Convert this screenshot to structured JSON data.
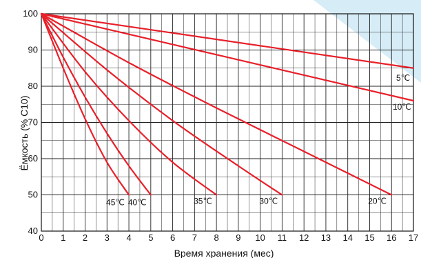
{
  "chart_data": {
    "type": "line",
    "xlabel": "Время хранения (мес)",
    "ylabel": "Ёмкость (% C10)",
    "xlim": [
      0,
      17
    ],
    "ylim": [
      40,
      100
    ],
    "x_ticks": [
      "0",
      "1",
      "2",
      "3",
      "4",
      "5",
      "6",
      "7",
      "8",
      "9",
      "10",
      "11",
      "12",
      "13",
      "14",
      "15",
      "16",
      "17"
    ],
    "y_ticks": [
      "40",
      "50",
      "60",
      "70",
      "80",
      "90",
      "100"
    ],
    "grid": true,
    "line_color": "#e8202a",
    "series": [
      {
        "name": "5℃",
        "label": "5℃",
        "x": [
          0,
          17
        ],
        "y": [
          100,
          85
        ]
      },
      {
        "name": "10℃",
        "label": "10℃",
        "x": [
          0,
          17
        ],
        "y": [
          100,
          76
        ]
      },
      {
        "name": "20℃",
        "label": "20℃",
        "x": [
          0,
          4,
          8,
          12,
          16
        ],
        "y": [
          100,
          86.5,
          74,
          62,
          50
        ]
      },
      {
        "name": "30℃",
        "label": "30℃",
        "x": [
          0,
          3,
          6,
          9,
          11
        ],
        "y": [
          100,
          84.5,
          70.5,
          58,
          50
        ]
      },
      {
        "name": "35℃",
        "label": "35℃",
        "x": [
          0,
          2,
          4,
          6,
          8
        ],
        "y": [
          100,
          84,
          70.5,
          59,
          50
        ]
      },
      {
        "name": "40℃",
        "label": "40℃",
        "x": [
          0,
          1,
          2,
          3,
          4,
          5
        ],
        "y": [
          100,
          88,
          77,
          67,
          58,
          50
        ]
      },
      {
        "name": "45℃",
        "label": "45℃",
        "x": [
          0,
          1,
          2,
          3,
          4
        ],
        "y": [
          100,
          85,
          71,
          59,
          50
        ]
      }
    ]
  }
}
